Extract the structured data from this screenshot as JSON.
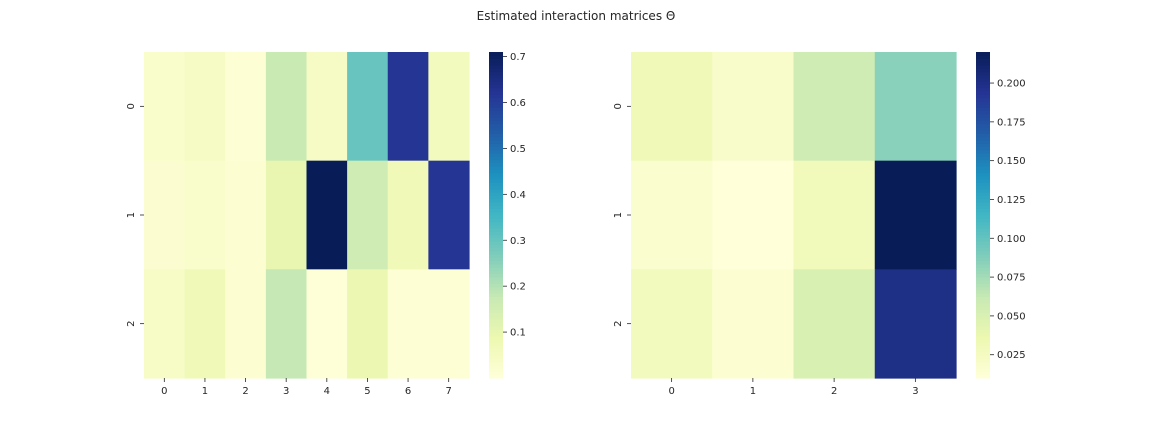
{
  "figure": {
    "title": "Estimated interaction matrices Θ"
  },
  "colormap": [
    "#ffffd9",
    "#edf8b1",
    "#c7e9b4",
    "#7fcdbb",
    "#41b6c4",
    "#1d91c0",
    "#225ea8",
    "#253494",
    "#081d58"
  ],
  "chart_data": [
    {
      "type": "heatmap",
      "title": "",
      "xlabel": "",
      "ylabel": "",
      "x_categories": [
        "0",
        "1",
        "2",
        "3",
        "4",
        "5",
        "6",
        "7"
      ],
      "y_categories": [
        "0",
        "1",
        "2"
      ],
      "values": [
        [
          0.03,
          0.045,
          0.01,
          0.17,
          0.045,
          0.3,
          0.62,
          0.06
        ],
        [
          0.02,
          0.03,
          0.015,
          0.1,
          0.71,
          0.16,
          0.07,
          0.62
        ],
        [
          0.04,
          0.07,
          0.015,
          0.18,
          0.005,
          0.09,
          0.01,
          0.01
        ]
      ],
      "vmin": 0.0,
      "vmax": 0.71,
      "colorbar_ticks": [
        "0.1",
        "0.2",
        "0.3",
        "0.4",
        "0.5",
        "0.6",
        "0.7"
      ],
      "cmap": "YlGnBu"
    },
    {
      "type": "heatmap",
      "title": "",
      "xlabel": "",
      "ylabel": "",
      "x_categories": [
        "0",
        "1",
        "2",
        "3"
      ],
      "y_categories": [
        "0",
        "1",
        "2"
      ],
      "values": [
        [
          0.032,
          0.02,
          0.058,
          0.085
        ],
        [
          0.018,
          0.01,
          0.03,
          0.22
        ],
        [
          0.028,
          0.015,
          0.05,
          0.2
        ]
      ],
      "vmin": 0.01,
      "vmax": 0.22,
      "colorbar_ticks": [
        "0.025",
        "0.050",
        "0.075",
        "0.100",
        "0.125",
        "0.150",
        "0.175",
        "0.200"
      ],
      "cmap": "YlGnBu"
    }
  ]
}
